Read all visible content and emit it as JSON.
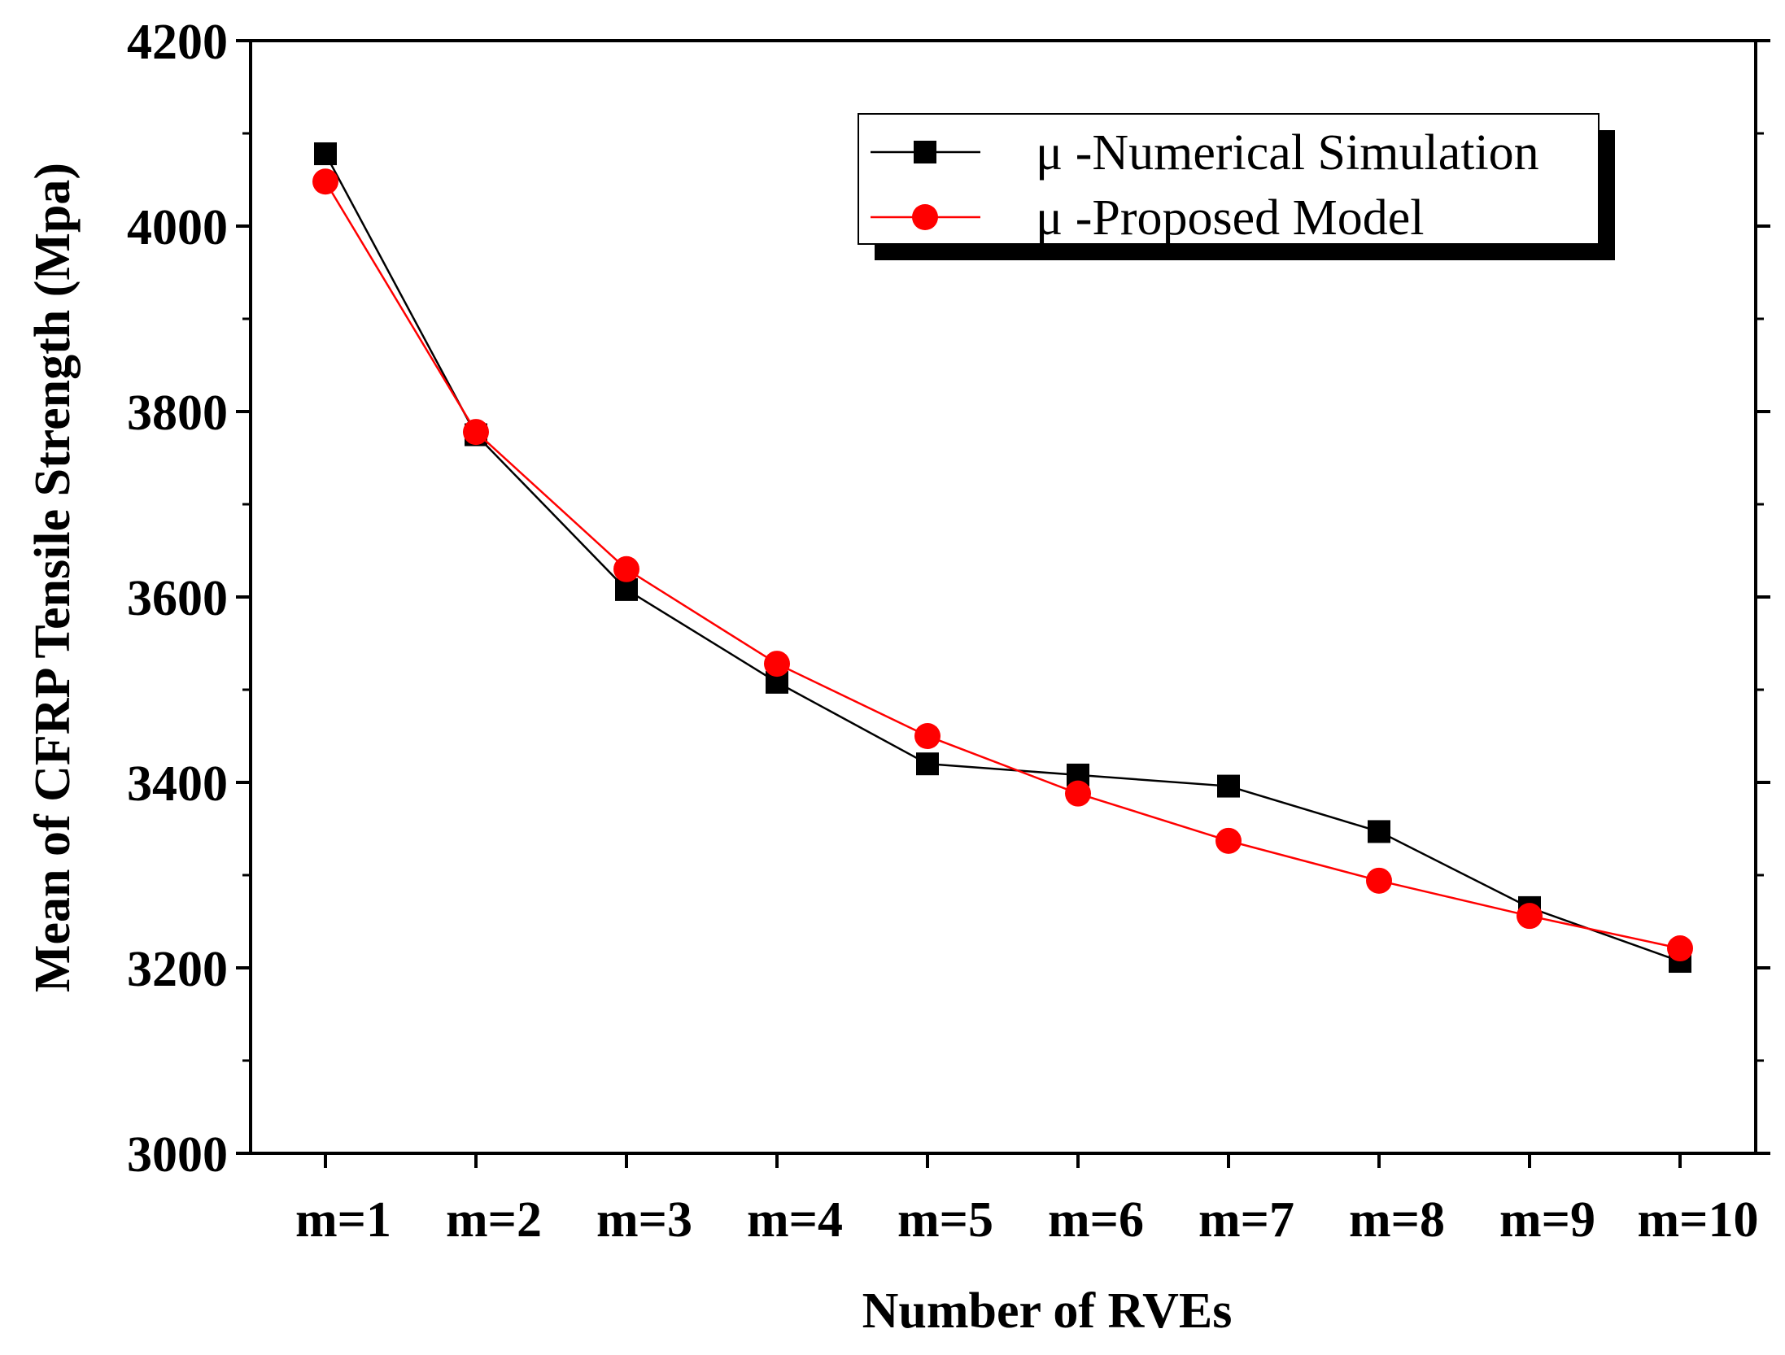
{
  "chart_data": {
    "type": "line",
    "title": "",
    "xlabel": "Number of RVEs",
    "ylabel": "Mean of CFRP Tensile Strength (Mpa)",
    "categories": [
      "m=1",
      "m=2",
      "m=3",
      "m=4",
      "m=5",
      "m=6",
      "m=7",
      "m=8",
      "m=9",
      "m=10"
    ],
    "ylim": [
      3000,
      4200
    ],
    "yticks": [
      3000,
      3200,
      3400,
      3600,
      3800,
      4000,
      4200
    ],
    "grid": false,
    "legend_position": "top-right",
    "series": [
      {
        "name": "μ -Numerical Simulation",
        "marker": "square",
        "color": "#000000",
        "values": [
          4078,
          3775,
          3608,
          3508,
          3420,
          3408,
          3396,
          3347,
          3265,
          3207
        ]
      },
      {
        "name": "μ -Proposed Model",
        "marker": "circle",
        "color": "#ff0000",
        "values": [
          4048,
          3778,
          3630,
          3528,
          3450,
          3388,
          3337,
          3294,
          3256,
          3221
        ]
      }
    ]
  }
}
